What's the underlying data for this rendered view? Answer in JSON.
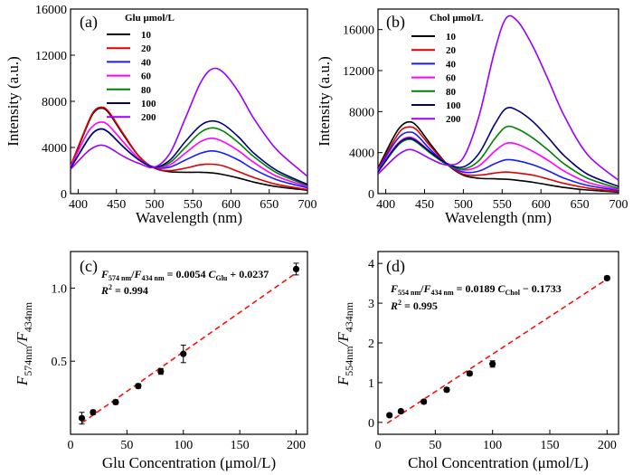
{
  "chart_data": [
    {
      "type": "line",
      "panel_label": "(a)",
      "xlabel": "Wavelength (nm)",
      "ylabel": "Intensity (a.u.)",
      "xlim": [
        390,
        700
      ],
      "ylim": [
        0,
        16000
      ],
      "xticks": [
        400,
        450,
        500,
        550,
        600,
        650,
        700
      ],
      "yticks": [
        0,
        4000,
        8000,
        12000,
        16000
      ],
      "legend_title": "Glu μmol/L",
      "legend_position": "top-right",
      "series": [
        {
          "name": "10",
          "color": "#000000",
          "x": [
            390,
            410,
            420,
            430,
            440,
            460,
            480,
            500,
            520,
            540,
            560,
            575,
            590,
            610,
            630,
            660,
            700
          ],
          "values": [
            2300,
            5600,
            7000,
            7400,
            7000,
            5000,
            3200,
            2200,
            1900,
            1850,
            1850,
            1800,
            1650,
            1350,
            1000,
            600,
            300
          ]
        },
        {
          "name": "20",
          "color": "#e00000",
          "x": [
            390,
            410,
            420,
            430,
            440,
            460,
            480,
            500,
            520,
            540,
            560,
            575,
            590,
            610,
            630,
            660,
            700
          ],
          "values": [
            2400,
            5700,
            7100,
            7500,
            7100,
            5100,
            3200,
            2200,
            2000,
            2200,
            2500,
            2550,
            2400,
            1900,
            1400,
            800,
            350
          ]
        },
        {
          "name": "40",
          "color": "#1a1aff",
          "x": [
            390,
            410,
            420,
            430,
            440,
            460,
            480,
            500,
            520,
            540,
            560,
            575,
            590,
            610,
            630,
            660,
            700
          ],
          "values": [
            2200,
            4400,
            5300,
            5600,
            5300,
            4000,
            2900,
            2250,
            2300,
            2900,
            3500,
            3700,
            3500,
            2900,
            2100,
            1200,
            500
          ]
        },
        {
          "name": "60",
          "color": "#ff00ff",
          "x": [
            390,
            410,
            420,
            430,
            440,
            460,
            480,
            500,
            520,
            540,
            560,
            575,
            590,
            610,
            630,
            660,
            700
          ],
          "values": [
            2300,
            5000,
            5900,
            6200,
            5900,
            4400,
            3000,
            2300,
            2500,
            3500,
            4500,
            4800,
            4500,
            3700,
            2700,
            1500,
            600
          ]
        },
        {
          "name": "80",
          "color": "#008000",
          "x": [
            390,
            410,
            420,
            430,
            440,
            460,
            480,
            500,
            520,
            540,
            560,
            575,
            590,
            610,
            630,
            660,
            700
          ],
          "values": [
            2200,
            4400,
            5300,
            5600,
            5300,
            4000,
            2900,
            2300,
            2700,
            4000,
            5300,
            5700,
            5400,
            4400,
            3200,
            1800,
            700
          ]
        },
        {
          "name": "100",
          "color": "#000080",
          "x": [
            390,
            410,
            420,
            430,
            440,
            460,
            480,
            500,
            520,
            540,
            560,
            575,
            590,
            610,
            630,
            660,
            700
          ],
          "values": [
            2200,
            4400,
            5300,
            5600,
            5300,
            4000,
            2900,
            2300,
            2900,
            4500,
            5900,
            6300,
            6000,
            4900,
            3500,
            2000,
            800
          ]
        },
        {
          "name": "200",
          "color": "#9900ff",
          "x": [
            390,
            410,
            420,
            430,
            440,
            460,
            480,
            500,
            520,
            540,
            560,
            575,
            590,
            610,
            630,
            660,
            700
          ],
          "values": [
            2100,
            3500,
            4000,
            4200,
            4000,
            3200,
            2600,
            2300,
            3500,
            6500,
            9600,
            10800,
            10500,
            8800,
            6500,
            3800,
            1500
          ]
        }
      ]
    },
    {
      "type": "line",
      "panel_label": "(b)",
      "xlabel": "Wavelength (nm)",
      "ylabel": "Intensity (a.u.)",
      "xlim": [
        390,
        700
      ],
      "ylim": [
        0,
        18000
      ],
      "xticks": [
        400,
        450,
        500,
        550,
        600,
        650,
        700
      ],
      "yticks": [
        0,
        4000,
        8000,
        12000,
        16000
      ],
      "legend_title": "Chol μmol/L",
      "legend_position": "top-right",
      "series": [
        {
          "name": "10",
          "color": "#000000",
          "x": [
            390,
            410,
            420,
            430,
            440,
            460,
            480,
            500,
            520,
            540,
            555,
            570,
            590,
            610,
            630,
            660,
            700
          ],
          "values": [
            2500,
            5500,
            6600,
            7000,
            6600,
            4600,
            2800,
            1800,
            1500,
            1450,
            1400,
            1300,
            1100,
            850,
            600,
            350,
            150
          ]
        },
        {
          "name": "20",
          "color": "#e00000",
          "x": [
            390,
            410,
            420,
            430,
            440,
            460,
            480,
            500,
            520,
            540,
            555,
            570,
            590,
            610,
            630,
            660,
            700
          ],
          "values": [
            2400,
            5100,
            6200,
            6500,
            6200,
            4400,
            2800,
            1900,
            1800,
            2000,
            2100,
            2000,
            1800,
            1400,
            1000,
            550,
            200
          ]
        },
        {
          "name": "40",
          "color": "#1a1aff",
          "x": [
            390,
            410,
            420,
            430,
            440,
            460,
            480,
            500,
            520,
            540,
            555,
            570,
            590,
            610,
            630,
            660,
            700
          ],
          "values": [
            2300,
            4800,
            5700,
            6000,
            5700,
            4100,
            2800,
            2100,
            2200,
            2900,
            3300,
            3200,
            2800,
            2200,
            1500,
            800,
            300
          ]
        },
        {
          "name": "60",
          "color": "#ff00ff",
          "x": [
            390,
            410,
            420,
            430,
            440,
            460,
            480,
            500,
            520,
            540,
            555,
            570,
            590,
            610,
            630,
            660,
            700
          ],
          "values": [
            2200,
            4400,
            5200,
            5500,
            5200,
            3900,
            2800,
            2300,
            2700,
            4100,
            4900,
            4800,
            4100,
            3200,
            2200,
            1100,
            400
          ]
        },
        {
          "name": "80",
          "color": "#008000",
          "x": [
            390,
            410,
            420,
            430,
            440,
            460,
            480,
            500,
            520,
            540,
            555,
            570,
            590,
            610,
            630,
            660,
            700
          ],
          "values": [
            2100,
            4200,
            5000,
            5300,
            5000,
            3800,
            2800,
            2400,
            3200,
            5300,
            6500,
            6300,
            5400,
            4200,
            2900,
            1500,
            500
          ]
        },
        {
          "name": "100",
          "color": "#000080",
          "x": [
            390,
            410,
            420,
            430,
            440,
            460,
            480,
            500,
            520,
            540,
            555,
            570,
            590,
            610,
            630,
            660,
            700
          ],
          "values": [
            2100,
            4300,
            5100,
            5400,
            5100,
            3900,
            2900,
            2600,
            3900,
            6700,
            8300,
            8100,
            7000,
            5400,
            3700,
            1900,
            700
          ]
        },
        {
          "name": "200",
          "color": "#9900ff",
          "x": [
            390,
            410,
            420,
            430,
            440,
            460,
            480,
            500,
            520,
            540,
            555,
            570,
            590,
            610,
            630,
            660,
            700
          ],
          "values": [
            1900,
            3400,
            4000,
            4300,
            4100,
            3300,
            2800,
            3500,
            7500,
            13800,
            17100,
            16800,
            14300,
            11000,
            7600,
            3800,
            1300
          ]
        }
      ]
    },
    {
      "type": "scatter",
      "panel_label": "(c)",
      "xlabel": "Glu Concentration (μmol/L)",
      "ylabel_main": "F",
      "ylabel_sub1": "574nm",
      "ylabel_sep": "/F",
      "ylabel_sub2": "434nm",
      "xlim": [
        0,
        210
      ],
      "ylim": [
        0,
        1.25
      ],
      "xticks": [
        0,
        50,
        100,
        150,
        200
      ],
      "yticks": [
        0.5,
        1.0
      ],
      "ytick_labels": [
        "0.5",
        "1.0"
      ],
      "points": [
        {
          "x": 10,
          "y": 0.11,
          "err": 0.04
        },
        {
          "x": 20,
          "y": 0.15,
          "err": 0.015
        },
        {
          "x": 40,
          "y": 0.22,
          "err": 0.015
        },
        {
          "x": 60,
          "y": 0.33,
          "err": 0.015
        },
        {
          "x": 80,
          "y": 0.43,
          "err": 0.02
        },
        {
          "x": 100,
          "y": 0.55,
          "err": 0.06
        },
        {
          "x": 200,
          "y": 1.13,
          "err": 0.04
        }
      ],
      "fit": {
        "x": [
          10,
          200
        ],
        "y": [
          0.0777,
          1.1037
        ],
        "color": "#ff0000"
      },
      "equation": {
        "f1": "F",
        "s1": "574 nm",
        "slash": "/",
        "f2": "F",
        "s2": "434 nm",
        "rhs": " = 0.0054 ",
        "c": "C",
        "cs": "Glu",
        "tail": " + 0.0237",
        "r": "R",
        "rsup": "2",
        "rval": " = 0.994"
      }
    },
    {
      "type": "scatter",
      "panel_label": "(d)",
      "xlabel": "Chol Concentration (μmol/L)",
      "ylabel_main": "F",
      "ylabel_sub1": "554nm",
      "ylabel_sep": "/F",
      "ylabel_sub2": "434nm",
      "xlim": [
        0,
        210
      ],
      "ylim": [
        -0.3,
        4.3
      ],
      "xticks": [
        0,
        50,
        100,
        150,
        200
      ],
      "yticks": [
        0,
        1,
        2,
        3,
        4
      ],
      "ytick_labels": [
        "0",
        "1",
        "2",
        "3",
        "4"
      ],
      "points": [
        {
          "x": 10,
          "y": 0.18,
          "err": 0.04
        },
        {
          "x": 20,
          "y": 0.28,
          "err": 0.04
        },
        {
          "x": 40,
          "y": 0.52,
          "err": 0.05
        },
        {
          "x": 60,
          "y": 0.82,
          "err": 0.05
        },
        {
          "x": 80,
          "y": 1.23,
          "err": 0.05
        },
        {
          "x": 100,
          "y": 1.47,
          "err": 0.08
        },
        {
          "x": 200,
          "y": 3.63,
          "err": 0.05
        }
      ],
      "fit": {
        "x": [
          8,
          200
        ],
        "y": [
          -0.0221,
          3.6067
        ],
        "color": "#ff0000"
      },
      "equation": {
        "f1": "F",
        "s1": "554 nm",
        "slash": "/",
        "f2": "F",
        "s2": "434 nm",
        "rhs": " = 0.0189 ",
        "c": "C",
        "cs": "Chol",
        "tail": " − 0.1733",
        "r": "R",
        "rsup": "2",
        "rval": " = 0.995"
      }
    }
  ]
}
